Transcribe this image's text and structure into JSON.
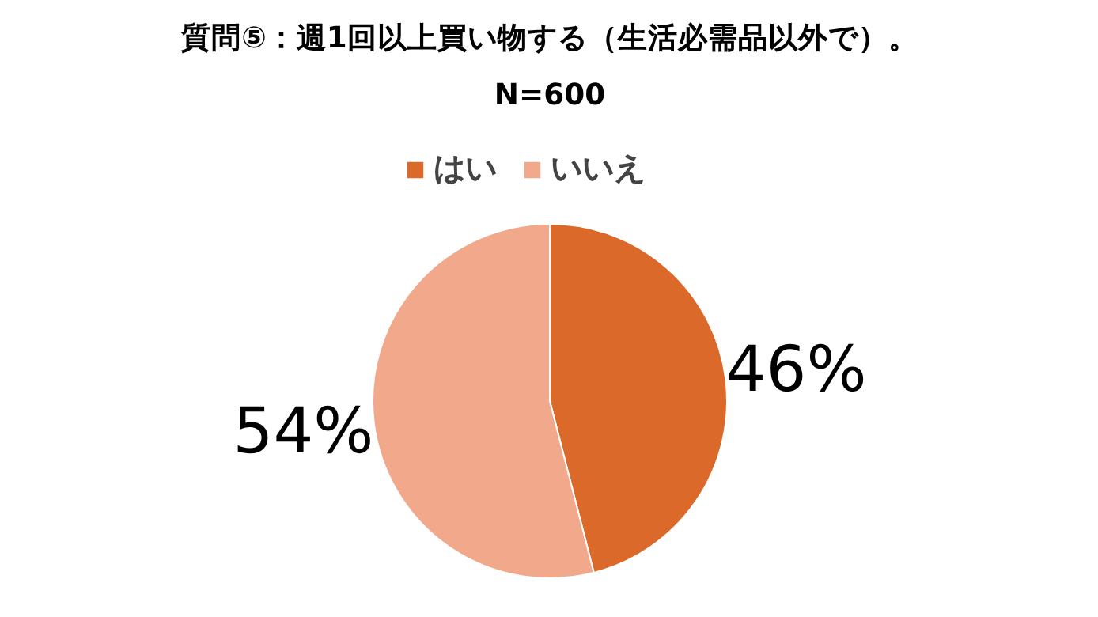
{
  "chart_data": {
    "type": "pie",
    "title": "質問⑤：週1回以上買い物する（生活必需品以外で）。",
    "subtitle": "N=600",
    "categories": [
      "はい",
      "いいえ"
    ],
    "values": [
      46,
      54
    ],
    "colors": [
      "#db6a2a",
      "#f2a88a"
    ],
    "value_labels": [
      "46%",
      "54%"
    ],
    "legend": "top"
  }
}
